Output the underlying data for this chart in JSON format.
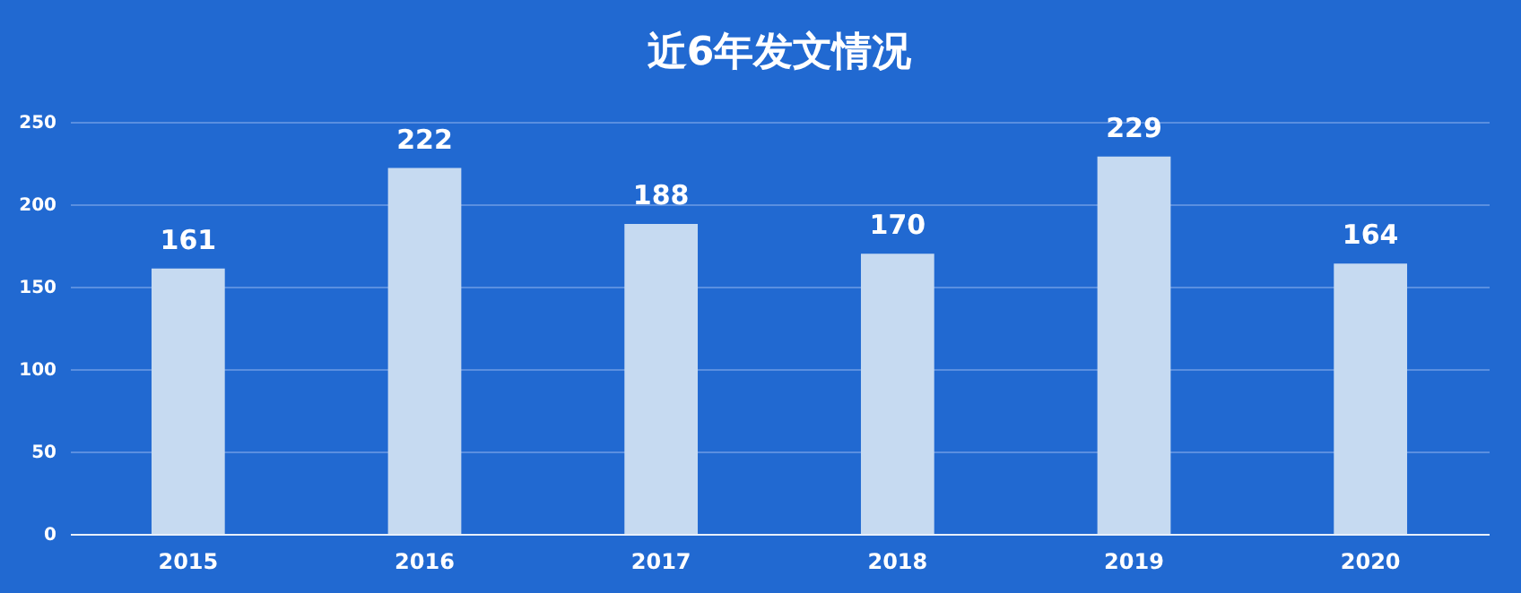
{
  "chart_data": {
    "type": "bar",
    "title": "近6年发文情况",
    "categories": [
      "2015",
      "2016",
      "2017",
      "2018",
      "2019",
      "2020"
    ],
    "values": [
      161,
      222,
      188,
      170,
      229,
      164
    ],
    "color": "#c6daf1",
    "ylim": [
      0,
      250
    ],
    "yticks": [
      0,
      50,
      100,
      150,
      200,
      250
    ],
    "grid": "y",
    "data_labels": true
  }
}
